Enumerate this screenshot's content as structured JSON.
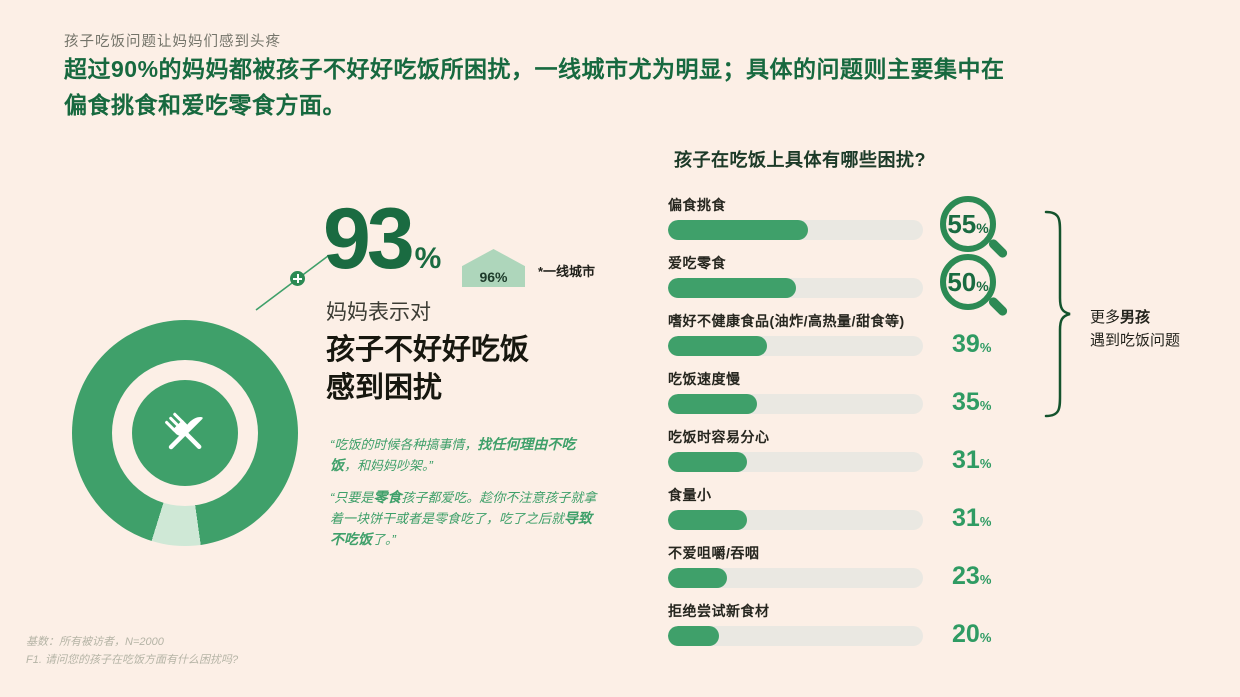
{
  "theme": {
    "background": "#fcefe6",
    "accent_green": "#3fa06a",
    "dark_green": "#1a6b41",
    "light_green": "#cfe8d6",
    "badge_green": "#aed6bb",
    "track_gray": "#eae8e2",
    "text_dark": "#23231c",
    "muted": "#b5b4a6",
    "value_green": "#2f9b63",
    "ring_green": "#2c8a54"
  },
  "header": {
    "kicker": "孩子吃饭问题让妈妈们感到头疼",
    "headline_line1": "超过90%的妈妈都被孩子不好好吃饭所困扰，一线城市尤为明显；具体的问题则主要集中在",
    "headline_line2": "偏食挑食和爱吃零食方面。"
  },
  "stat": {
    "value": "93",
    "unit": "%",
    "badge_value": "96%",
    "badge_note": "*一线城市",
    "statement_intro": "妈妈表示对",
    "statement_line1": "孩子不好好吃饭",
    "statement_line2": "感到困扰"
  },
  "quotes": [
    {
      "parts": [
        {
          "text": "“吃饭的时候各种搞事情，",
          "bold": false
        },
        {
          "text": "找任何理由不吃饭",
          "bold": true
        },
        {
          "text": "，和妈妈吵架。”",
          "bold": false
        }
      ]
    },
    {
      "parts": [
        {
          "text": "“只要是",
          "bold": false
        },
        {
          "text": "零食",
          "bold": true
        },
        {
          "text": "孩子都爱吃。趁你不注意孩子就拿着一块饼干或者是零食吃了，吃了之后就",
          "bold": false
        },
        {
          "text": "导致不吃饭",
          "bold": true
        },
        {
          "text": "了。”",
          "bold": false
        }
      ]
    }
  ],
  "chart_data": [
    {
      "type": "pie",
      "subtype": "donut",
      "label": "妈妈表示对孩子不好好吃饭感到困扰",
      "values": [
        93,
        7
      ],
      "value_pct": 93,
      "remainder_pct": 7,
      "note_value": "96%",
      "note_label": "*一线城市"
    },
    {
      "type": "bar",
      "orientation": "horizontal",
      "title": "孩子在吃饭上具体有哪些困扰?",
      "categories": [
        "偏食挑食",
        "爱吃零食",
        "嗜好不健康食品(油炸/高热量/甜食等)",
        "吃饭速度慢",
        "吃饭时容易分心",
        "食量小",
        "不爱咀嚼/吞咽",
        "拒绝尝试新食材"
      ],
      "values": [
        55,
        50,
        39,
        35,
        31,
        31,
        23,
        20
      ],
      "unit": "%",
      "xlim": [
        0,
        100
      ],
      "grid": false,
      "magnifier_highlight_indices": [
        0,
        1
      ],
      "annotation": {
        "line1_parts": [
          {
            "text": "更多",
            "bold": false
          },
          {
            "text": "男孩",
            "bold": true
          }
        ],
        "line2": "遇到吃饭问题"
      }
    }
  ],
  "footnotes": [
    "基数：所有被访者，N=2000",
    "F1. 请问您的孩子在吃饭方面有什么困扰吗?"
  ]
}
